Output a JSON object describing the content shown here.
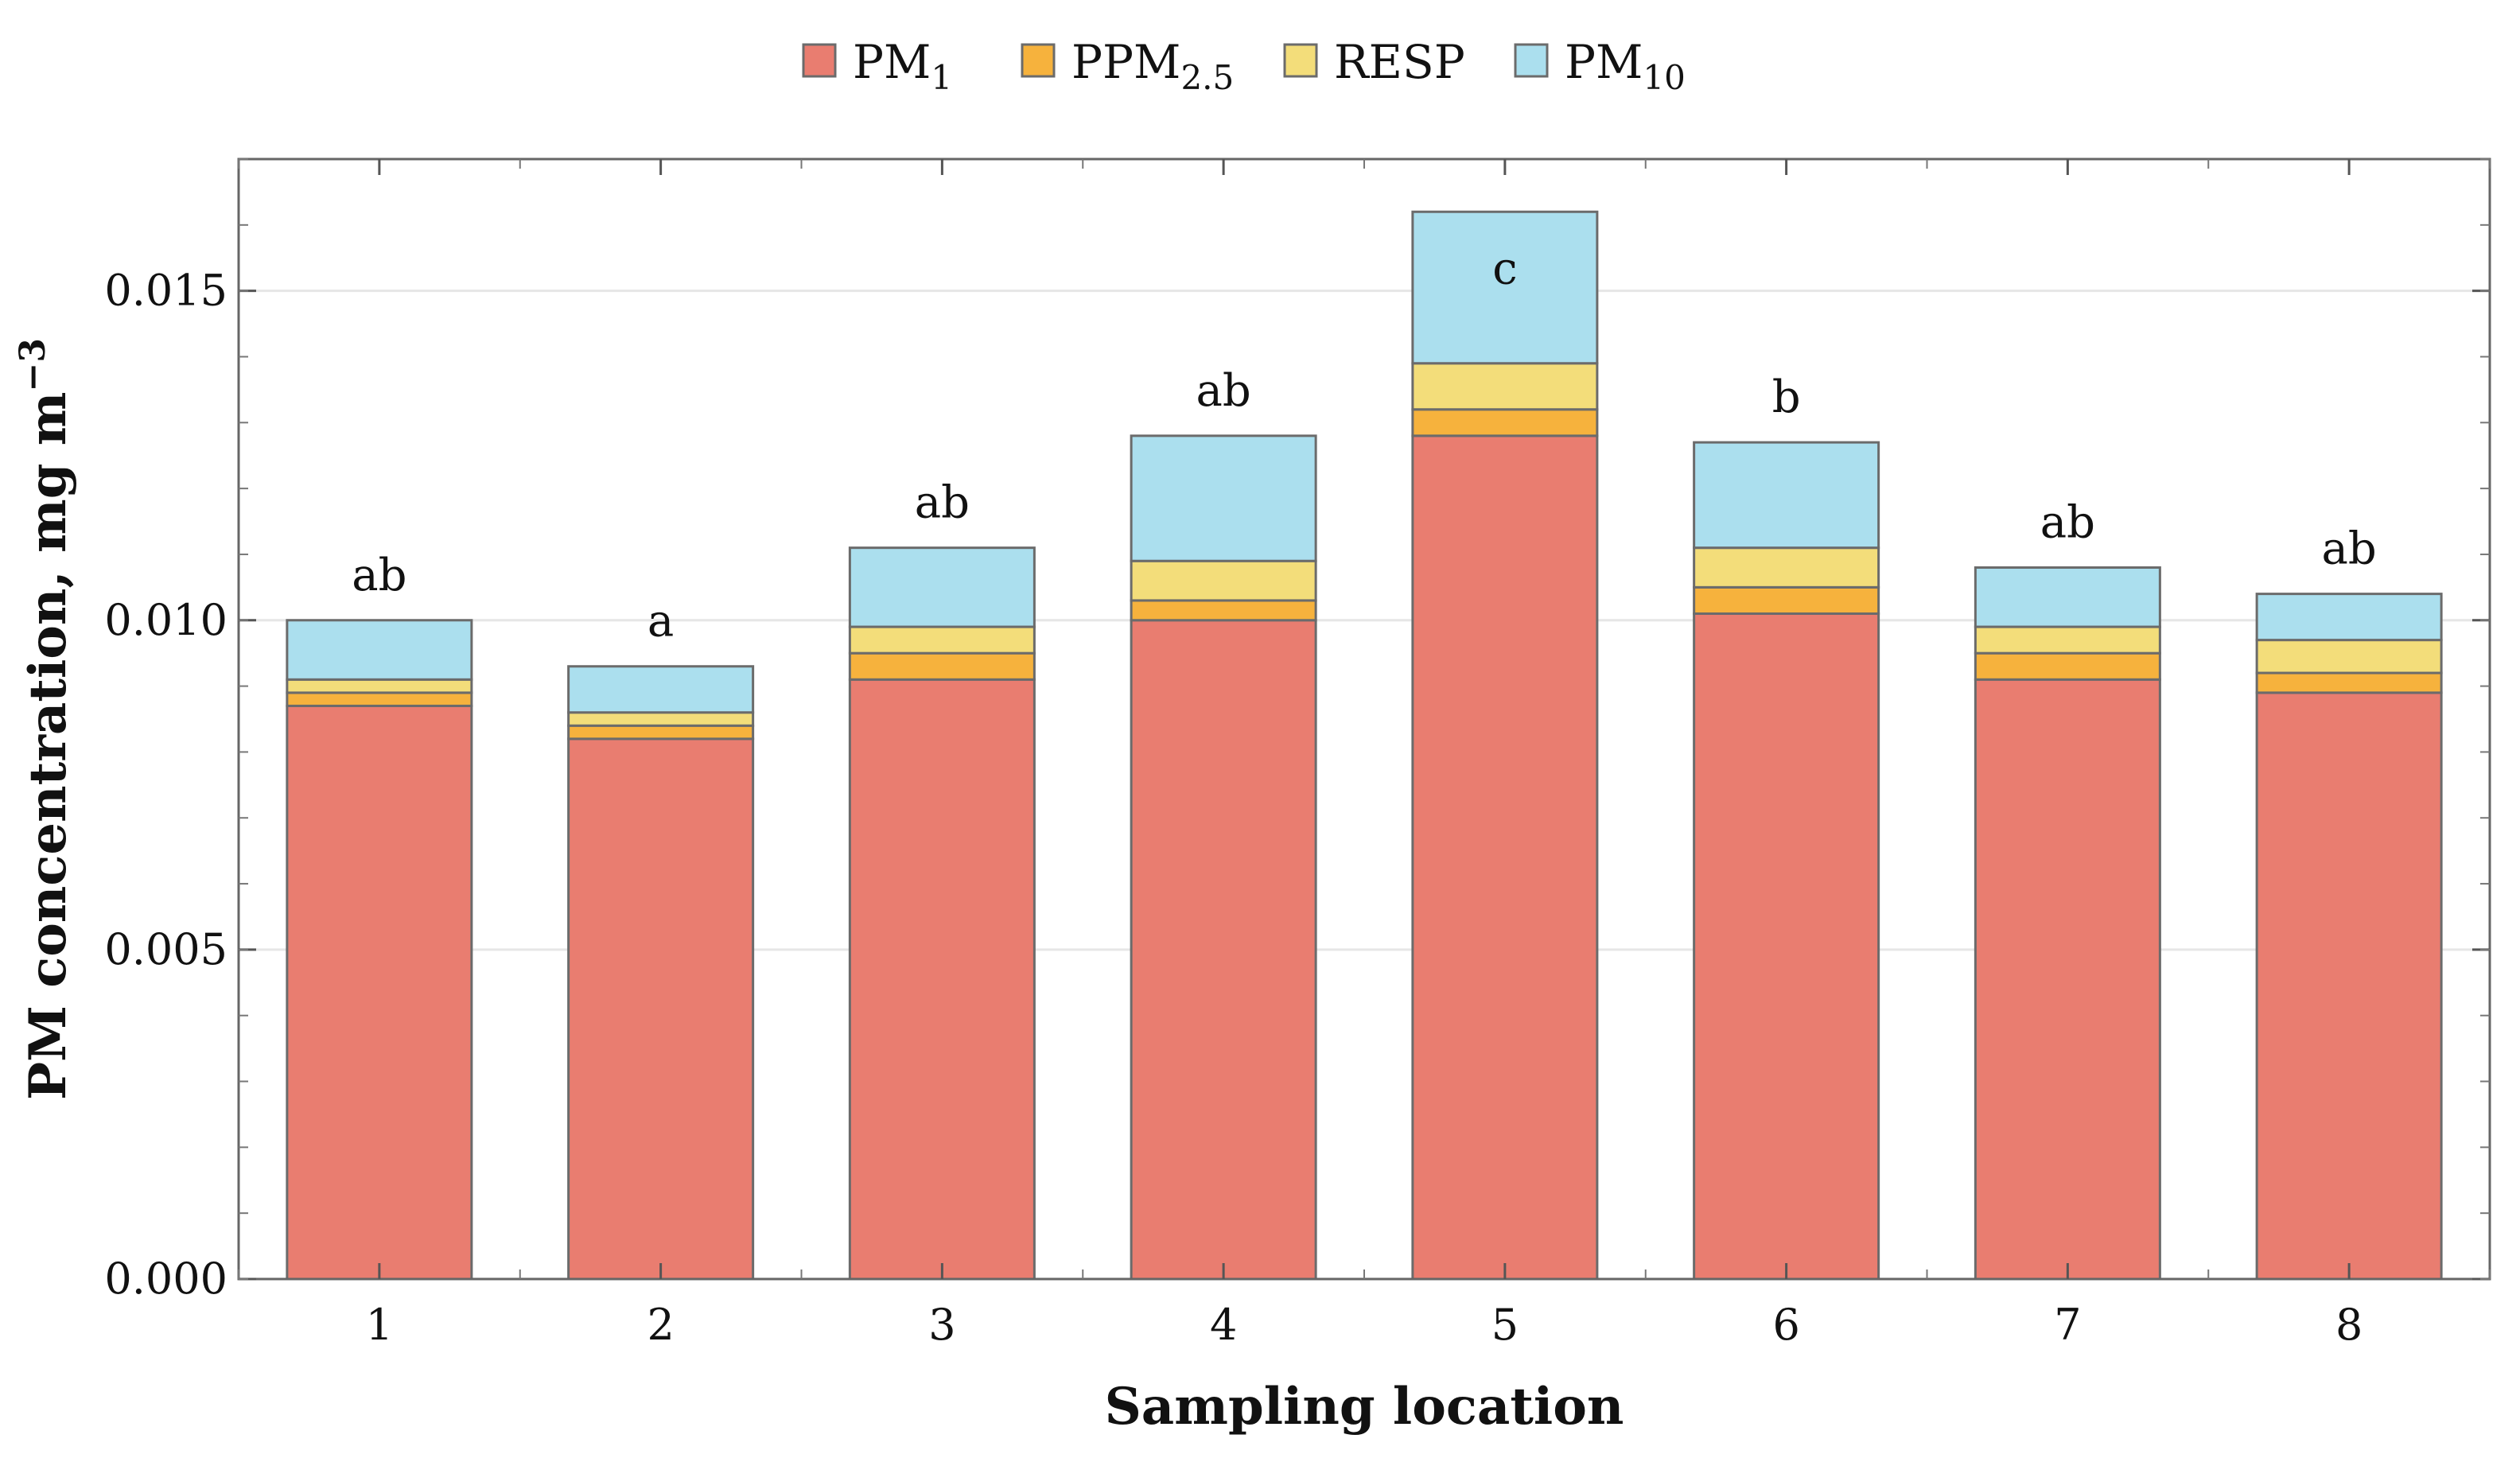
{
  "chart_data": {
    "type": "bar",
    "stacked": true,
    "title": "",
    "xlabel": "Sampling location",
    "ylabel": "PM concentration, mg m",
    "ylabel_superscript": "−3",
    "ylim": [
      0,
      0.017
    ],
    "yticks": [
      0,
      0.005,
      0.01,
      0.015
    ],
    "ytick_labels": [
      "0.000",
      "0.005",
      "0.010",
      "0.015"
    ],
    "grid": true,
    "legend_position": "top-center",
    "categories": [
      "1",
      "2",
      "3",
      "4",
      "5",
      "6",
      "7",
      "8"
    ],
    "series": [
      {
        "name": "PM",
        "sub": "1",
        "color": "#e97d70",
        "values": [
          0.0087,
          0.0082,
          0.0091,
          0.01,
          0.0128,
          0.0101,
          0.0091,
          0.0089
        ]
      },
      {
        "name": "PPM",
        "sub": "2.5",
        "color": "#f6b23d",
        "values": [
          0.0002,
          0.0002,
          0.0004,
          0.0003,
          0.0004,
          0.0004,
          0.0004,
          0.0003
        ]
      },
      {
        "name": "RESP",
        "sub": "",
        "color": "#f3dd7a",
        "values": [
          0.0002,
          0.0002,
          0.0004,
          0.0006,
          0.0007,
          0.0006,
          0.0004,
          0.0005
        ]
      },
      {
        "name": "PM",
        "sub": "10",
        "color": "#abdfee",
        "values": [
          0.0009,
          0.0007,
          0.0012,
          0.0019,
          0.0023,
          0.0016,
          0.0009,
          0.0007
        ]
      }
    ],
    "significance_letters": [
      "ab",
      "a",
      "ab",
      "ab",
      "c",
      "b",
      "ab",
      "ab"
    ]
  }
}
